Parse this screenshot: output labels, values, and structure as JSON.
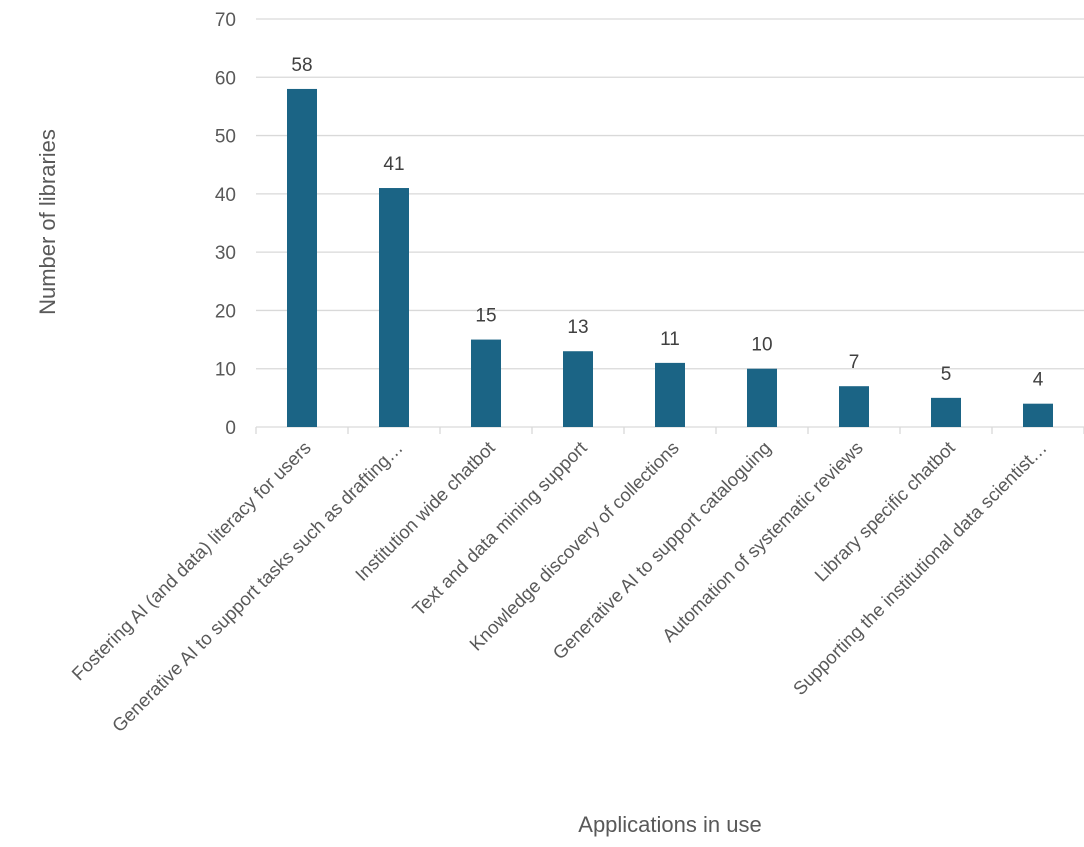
{
  "colors": {
    "bar": "#1b6485",
    "grid": "#d9d9d9",
    "text": "#595959"
  },
  "chart_data": {
    "type": "bar",
    "title": "",
    "xlabel": "Applications in use",
    "ylabel": "Number of libraries",
    "ylim": [
      0,
      70
    ],
    "yticks": [
      0,
      10,
      20,
      30,
      40,
      50,
      60,
      70
    ],
    "grid": true,
    "legend": "none",
    "data_labels": true,
    "categories": [
      "Fostering AI (and data) literacy for users",
      "Generative AI to support tasks such as drafting…",
      "Institution wide chatbot",
      "Text and data mining support",
      "Knowledge discovery of collections",
      "Generative AI to support cataloguing",
      "Automation of systematic reviews",
      "Library specific chatbot",
      "Supporting the institutional data scientist…"
    ],
    "values": [
      58,
      41,
      15,
      13,
      11,
      10,
      7,
      5,
      4
    ]
  }
}
